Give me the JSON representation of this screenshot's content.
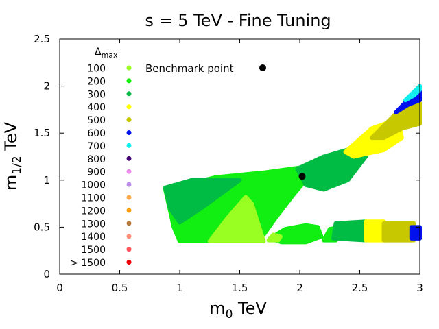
{
  "chart_data": {
    "type": "scatter",
    "title": "s = 5 TeV - Fine Tuning",
    "xlabel_main": "m",
    "xlabel_sub": "0",
    "xlabel_unit": " TeV",
    "ylabel_main": "m",
    "ylabel_sub": "1/2",
    "ylabel_unit": " TeV",
    "xlim": [
      0,
      3
    ],
    "ylim": [
      0,
      2.5
    ],
    "x_ticks": [
      0,
      0.5,
      1,
      1.5,
      2,
      2.5,
      3
    ],
    "y_ticks": [
      0,
      0.5,
      1,
      1.5,
      2,
      2.5
    ],
    "x_tick_labels": [
      "0",
      "0.5",
      "1",
      "1.5",
      "2",
      "2.5",
      "3"
    ],
    "y_tick_labels": [
      "0",
      "0.5",
      "1",
      "1.5",
      "2",
      "2.5"
    ],
    "grid": false,
    "legend_position": "top-left",
    "legend_title_main": "Δ",
    "legend_title_sub": "max",
    "legend": [
      {
        "label": "100",
        "color": "#99ff22"
      },
      {
        "label": "200",
        "color": "#11ee11"
      },
      {
        "label": "300",
        "color": "#00bb44"
      },
      {
        "label": "400",
        "color": "#ffff00"
      },
      {
        "label": "500",
        "color": "#c8c800"
      },
      {
        "label": "600",
        "color": "#0011ee"
      },
      {
        "label": "700",
        "color": "#11eeee"
      },
      {
        "label": "800",
        "color": "#440077"
      },
      {
        "label": "900",
        "color": "#ee88ee"
      },
      {
        "label": "1000",
        "color": "#bb88ee"
      },
      {
        "label": "1100",
        "color": "#ffaa44"
      },
      {
        "label": "1200",
        "color": "#ff9911"
      },
      {
        "label": "1300",
        "color": "#bb7733"
      },
      {
        "label": "1400",
        "color": "#ff8877"
      },
      {
        "label": "1500",
        "color": "#ff5555"
      },
      {
        "label": "> 1500",
        "color": "#ee0000"
      }
    ],
    "benchmark_label": "Benchmark point",
    "benchmark_point": {
      "x": 2.02,
      "y": 1.04
    },
    "regions": [
      {
        "name": "region-200-main",
        "color": "#11ee11",
        "points": [
          [
            0.88,
            0.9
          ],
          [
            1.3,
            1.03
          ],
          [
            1.7,
            1.08
          ],
          [
            2.1,
            1.15
          ],
          [
            2.05,
            1.0
          ],
          [
            1.95,
            0.85
          ],
          [
            1.8,
            0.6
          ],
          [
            1.7,
            0.42
          ],
          [
            1.6,
            0.35
          ],
          [
            1.0,
            0.35
          ],
          [
            0.95,
            0.5
          ]
        ]
      },
      {
        "name": "region-300-left",
        "color": "#00bb44",
        "points": [
          [
            0.88,
            0.92
          ],
          [
            1.1,
            1.0
          ],
          [
            1.5,
            1.0
          ],
          [
            1.2,
            0.72
          ],
          [
            1.0,
            0.55
          ],
          [
            0.92,
            0.7
          ]
        ]
      },
      {
        "name": "region-100-wedge",
        "color": "#99ff22",
        "points": [
          [
            1.25,
            0.35
          ],
          [
            1.7,
            0.35
          ],
          [
            1.6,
            0.75
          ],
          [
            1.55,
            0.82
          ],
          [
            1.4,
            0.6
          ]
        ]
      },
      {
        "name": "region-300-mid",
        "color": "#00bb44",
        "points": [
          [
            1.98,
            1.12
          ],
          [
            2.2,
            1.25
          ],
          [
            2.5,
            1.36
          ],
          [
            2.55,
            1.25
          ],
          [
            2.4,
            1.0
          ],
          [
            2.2,
            0.9
          ],
          [
            2.05,
            0.95
          ]
        ]
      },
      {
        "name": "region-400-upper",
        "color": "#ffff00",
        "points": [
          [
            2.38,
            1.3
          ],
          [
            2.6,
            1.55
          ],
          [
            2.82,
            1.65
          ],
          [
            2.85,
            1.45
          ],
          [
            2.7,
            1.32
          ],
          [
            2.55,
            1.28
          ],
          [
            2.45,
            1.25
          ]
        ]
      },
      {
        "name": "region-500-upper",
        "color": "#c8c800",
        "points": [
          [
            2.6,
            1.45
          ],
          [
            2.85,
            1.77
          ],
          [
            3.0,
            1.82
          ],
          [
            3.0,
            1.6
          ],
          [
            2.85,
            1.55
          ],
          [
            2.7,
            1.45
          ]
        ]
      },
      {
        "name": "region-600-upper",
        "color": "#0011ee",
        "points": [
          [
            2.8,
            1.72
          ],
          [
            3.0,
            1.98
          ],
          [
            3.0,
            1.85
          ],
          [
            2.9,
            1.8
          ]
        ]
      },
      {
        "name": "region-700-upper",
        "color": "#11eeee",
        "points": [
          [
            2.88,
            1.85
          ],
          [
            3.0,
            2.0
          ],
          [
            3.0,
            1.96
          ],
          [
            2.95,
            1.9
          ]
        ]
      },
      {
        "name": "region-200-strip",
        "color": "#11ee11",
        "points": [
          [
            1.75,
            0.38
          ],
          [
            1.88,
            0.48
          ],
          [
            2.05,
            0.52
          ],
          [
            2.15,
            0.5
          ],
          [
            2.18,
            0.4
          ],
          [
            2.05,
            0.34
          ],
          [
            1.85,
            0.34
          ]
        ]
      },
      {
        "name": "region-100-strip",
        "color": "#99ff22",
        "points": [
          [
            1.74,
            0.36
          ],
          [
            1.78,
            0.42
          ],
          [
            1.84,
            0.4
          ],
          [
            1.82,
            0.36
          ]
        ]
      },
      {
        "name": "region-200-strip-b",
        "color": "#11ee11",
        "points": [
          [
            2.2,
            0.36
          ],
          [
            2.25,
            0.48
          ],
          [
            2.35,
            0.5
          ],
          [
            2.3,
            0.36
          ]
        ]
      },
      {
        "name": "region-300-strip",
        "color": "#00bb44",
        "points": [
          [
            2.28,
            0.38
          ],
          [
            2.3,
            0.54
          ],
          [
            2.55,
            0.56
          ],
          [
            2.56,
            0.36
          ]
        ]
      },
      {
        "name": "region-400-strip",
        "color": "#ffff00",
        "points": [
          [
            2.55,
            0.36
          ],
          [
            2.55,
            0.56
          ],
          [
            2.7,
            0.56
          ],
          [
            2.72,
            0.36
          ]
        ]
      },
      {
        "name": "region-500-strip",
        "color": "#c8c800",
        "points": [
          [
            2.7,
            0.36
          ],
          [
            2.7,
            0.54
          ],
          [
            2.95,
            0.54
          ],
          [
            2.95,
            0.36
          ]
        ]
      },
      {
        "name": "region-600-strip",
        "color": "#0011ee",
        "points": [
          [
            2.93,
            0.38
          ],
          [
            2.93,
            0.5
          ],
          [
            3.0,
            0.5
          ],
          [
            3.0,
            0.38
          ]
        ]
      }
    ]
  }
}
